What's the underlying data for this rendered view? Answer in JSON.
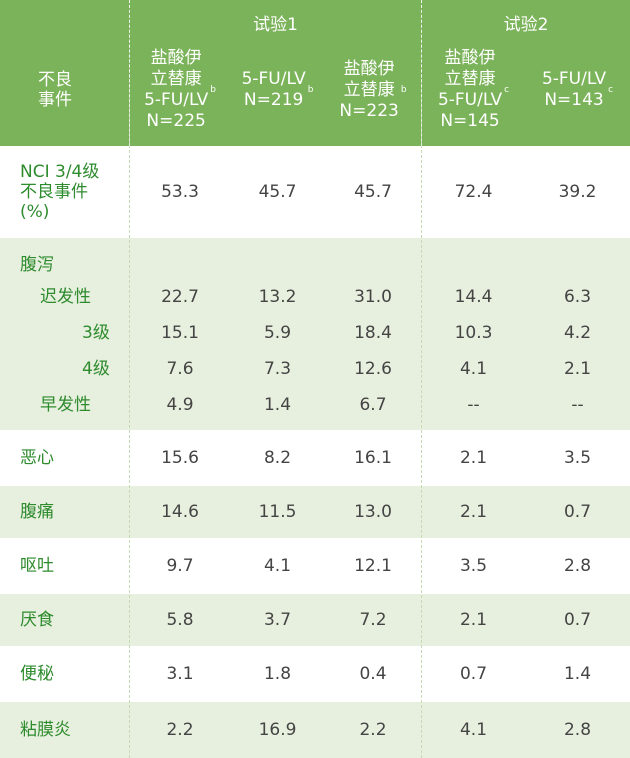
{
  "header": {
    "row_label": "不良\n事件",
    "trial1": "试验1",
    "trial2": "试验2",
    "columns": [
      {
        "name": "盐酸伊\n立替康\n5-FU/LV\nN=225",
        "sup": "b"
      },
      {
        "name": "5-FU/LV\nN=219",
        "sup": "b"
      },
      {
        "name": "盐酸伊\n立替康\nN=223",
        "sup": "b"
      },
      {
        "name": "盐酸伊\n立替康\n5-FU/LV\nN=145",
        "sup": "c"
      },
      {
        "name": "5-FU/LV\nN=143",
        "sup": "c"
      }
    ]
  },
  "rows": {
    "nci": {
      "label": "NCI 3/4级\n不良事件\n(%)",
      "values": [
        "53.3",
        "45.7",
        "45.7",
        "72.4",
        "39.2"
      ]
    },
    "diarrhea": {
      "label": "腹泻"
    },
    "late": {
      "label": "迟发性",
      "values": [
        "22.7",
        "13.2",
        "31.0",
        "14.4",
        "6.3"
      ]
    },
    "g3": {
      "label": "3级",
      "values": [
        "15.1",
        "5.9",
        "18.4",
        "10.3",
        "4.2"
      ]
    },
    "g4": {
      "label": "4级",
      "values": [
        "7.6",
        "7.3",
        "12.6",
        "4.1",
        "2.1"
      ]
    },
    "early": {
      "label": "早发性",
      "values": [
        "4.9",
        "1.4",
        "6.7",
        "--",
        "--"
      ]
    },
    "nausea": {
      "label": "恶心",
      "values": [
        "15.6",
        "8.2",
        "16.1",
        "2.1",
        "3.5"
      ]
    },
    "abdpain": {
      "label": "腹痛",
      "values": [
        "14.6",
        "11.5",
        "13.0",
        "2.1",
        "0.7"
      ]
    },
    "vomit": {
      "label": "呕吐",
      "values": [
        "9.7",
        "4.1",
        "12.1",
        "3.5",
        "2.8"
      ]
    },
    "anorexia": {
      "label": "厌食",
      "values": [
        "5.8",
        "3.7",
        "7.2",
        "2.1",
        "0.7"
      ]
    },
    "constip": {
      "label": "便秘",
      "values": [
        "3.1",
        "1.8",
        "0.4",
        "0.7",
        "1.4"
      ]
    },
    "mucositis": {
      "label": "粘膜炎",
      "values": [
        "2.2",
        "16.9",
        "2.2",
        "4.1",
        "2.8"
      ]
    }
  },
  "colors": {
    "header_green": "#7bb35a",
    "band_green": "#e7f0de",
    "label_green": "#2e8b2e",
    "value_gray": "#444444"
  }
}
